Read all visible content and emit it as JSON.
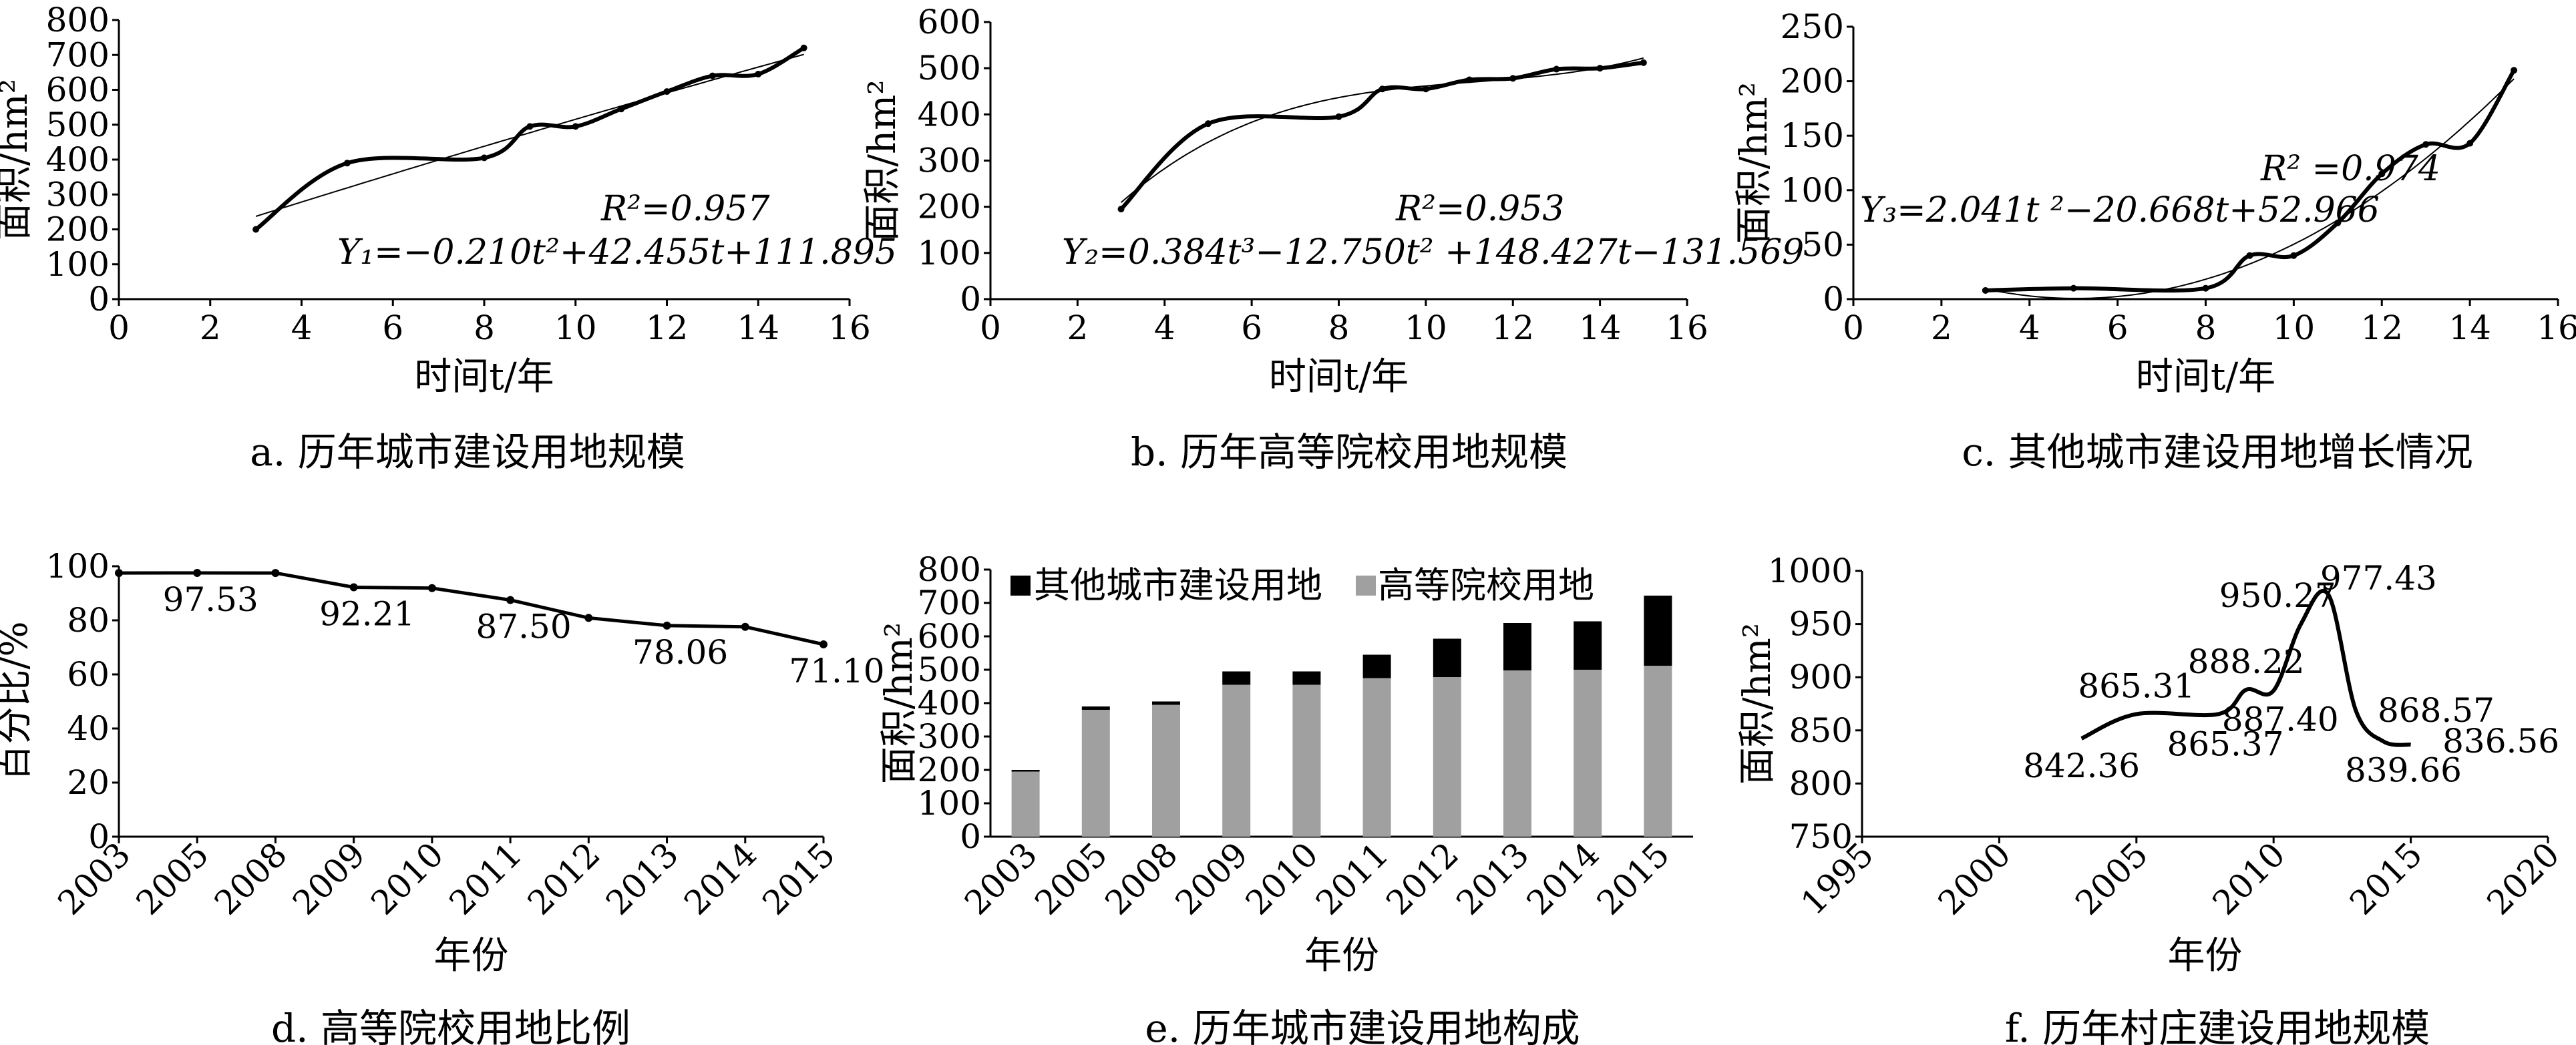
{
  "chart_data": [
    {
      "id": "a",
      "type": "line",
      "caption": "a. 历年城市建设用地规模",
      "xlabel": "时间t/年",
      "ylabel": "面积/hm²",
      "xlim": [
        0,
        16
      ],
      "ylim": [
        0,
        800
      ],
      "xticks": [
        "0",
        "2",
        "4",
        "6",
        "8",
        "10",
        "12",
        "14",
        "16"
      ],
      "yticks": [
        "0",
        "100",
        "200",
        "300",
        "400",
        "500",
        "600",
        "700",
        "800"
      ],
      "series": [
        {
          "x": [
            3,
            5,
            8,
            9,
            10,
            11,
            12,
            13,
            14,
            15
          ],
          "y": [
            200,
            390,
            405,
            495,
            495,
            545,
            595,
            640,
            645,
            720
          ]
        }
      ],
      "fit": {
        "kind": "poly",
        "coef": [
          111.895,
          42.455,
          -0.21
        ]
      },
      "annotations": [
        "R²=0.957",
        "Y₁=−0.210t²+42.455t+111.895"
      ]
    },
    {
      "id": "b",
      "type": "line",
      "caption": "b. 历年高等院校用地规模",
      "xlabel": "时间t/年",
      "ylabel": "面积/hm²",
      "xlim": [
        0,
        16
      ],
      "ylim": [
        0,
        600
      ],
      "xticks": [
        "0",
        "2",
        "4",
        "6",
        "8",
        "10",
        "12",
        "14",
        "16"
      ],
      "yticks": [
        "0",
        "100",
        "200",
        "300",
        "400",
        "500",
        "600"
      ],
      "series": [
        {
          "x": [
            3,
            5,
            8,
            9,
            10,
            11,
            12,
            13,
            14,
            15
          ],
          "y": [
            195,
            380,
            395,
            455,
            455,
            475,
            478,
            498,
            500,
            512
          ]
        }
      ],
      "fit": {
        "kind": "poly",
        "coef": [
          -131.569,
          148.427,
          -12.75,
          0.384
        ]
      },
      "annotations": [
        "R²=0.953",
        "Y₂=0.384t³−12.750t² +148.427t−131.569"
      ]
    },
    {
      "id": "c",
      "type": "line",
      "caption": "c. 其他城市建设用地增长情况",
      "xlabel": "时间t/年",
      "ylabel": "面积/hm²",
      "xlim": [
        0,
        16
      ],
      "ylim": [
        0,
        250
      ],
      "xticks": [
        "0",
        "2",
        "4",
        "6",
        "8",
        "10",
        "12",
        "14",
        "16"
      ],
      "yticks": [
        "0",
        "50",
        "100",
        "150",
        "200",
        "250"
      ],
      "series": [
        {
          "x": [
            3,
            5,
            8,
            9,
            10,
            11,
            12,
            13,
            14,
            15
          ],
          "y": [
            8,
            10,
            10,
            40,
            40,
            70,
            115,
            142,
            143,
            210
          ]
        }
      ],
      "fit": {
        "kind": "poly",
        "coef": [
          52.966,
          -20.668,
          2.041
        ]
      },
      "annotations": [
        "R² =0.974",
        "Y₃=2.041t ²−20.668t+52.966"
      ]
    },
    {
      "id": "d",
      "type": "line",
      "caption": "d. 高等院校用地比例",
      "xlabel": "年份",
      "ylabel": "百分比/%",
      "ylim": [
        0,
        100
      ],
      "categories": [
        "2003",
        "2005",
        "2008",
        "2009",
        "2010",
        "2011",
        "2012",
        "2013",
        "2014",
        "2015"
      ],
      "yticks": [
        "0",
        "20",
        "40",
        "60",
        "80",
        "100"
      ],
      "series": [
        {
          "values": [
            97.5,
            97.53,
            97.5,
            92.21,
            91.9,
            87.5,
            80.9,
            78.06,
            77.6,
            71.1
          ]
        }
      ],
      "data_labels": [
        {
          "index": 1,
          "text": "97.53"
        },
        {
          "index": 3,
          "text": "92.21"
        },
        {
          "index": 5,
          "text": "87.50"
        },
        {
          "index": 7,
          "text": "78.06"
        },
        {
          "index": 9,
          "text": "71.10"
        }
      ]
    },
    {
      "id": "e",
      "type": "bar",
      "caption": "e. 历年城市建设用地构成",
      "xlabel": "年份",
      "ylabel": "面积/hm²",
      "ylim": [
        0,
        800
      ],
      "categories": [
        "2003",
        "2005",
        "2008",
        "2009",
        "2010",
        "2011",
        "2012",
        "2013",
        "2014",
        "2015"
      ],
      "yticks": [
        "0",
        "100",
        "200",
        "300",
        "400",
        "500",
        "600",
        "700",
        "800"
      ],
      "series": [
        {
          "name": "高等院校用地",
          "color": "#a0a0a0",
          "values": [
            195,
            380,
            395,
            455,
            455,
            475,
            478,
            498,
            500,
            512
          ]
        },
        {
          "name": "其他城市建设用地",
          "color": "#000000",
          "values": [
            5,
            10,
            10,
            40,
            40,
            70,
            115,
            142,
            145,
            210
          ]
        }
      ],
      "legend": "top"
    },
    {
      "id": "f",
      "type": "line",
      "caption": "f. 历年村庄建设用地规模",
      "xlabel": "年份",
      "ylabel": "面积/hm²",
      "xlim": [
        1995,
        2020
      ],
      "ylim": [
        750,
        1000
      ],
      "xticks": [
        "1995",
        "2000",
        "2005",
        "2010",
        "2015",
        "2020"
      ],
      "yticks": [
        "750",
        "800",
        "850",
        "900",
        "950",
        "1000"
      ],
      "series": [
        {
          "x": [
            2003,
            2005,
            2008,
            2009,
            2010,
            2011,
            2012,
            2013,
            2014,
            2015
          ],
          "y": [
            842.36,
            865.31,
            865.37,
            888.22,
            887.4,
            950.27,
            977.43,
            868.57,
            839.66,
            836.56
          ]
        }
      ],
      "data_labels": [
        "842.36",
        "865.31",
        "865.37",
        "888.22",
        "887.40",
        "950.27",
        "977.43",
        "868.57",
        "839.66",
        "836.56"
      ]
    }
  ]
}
